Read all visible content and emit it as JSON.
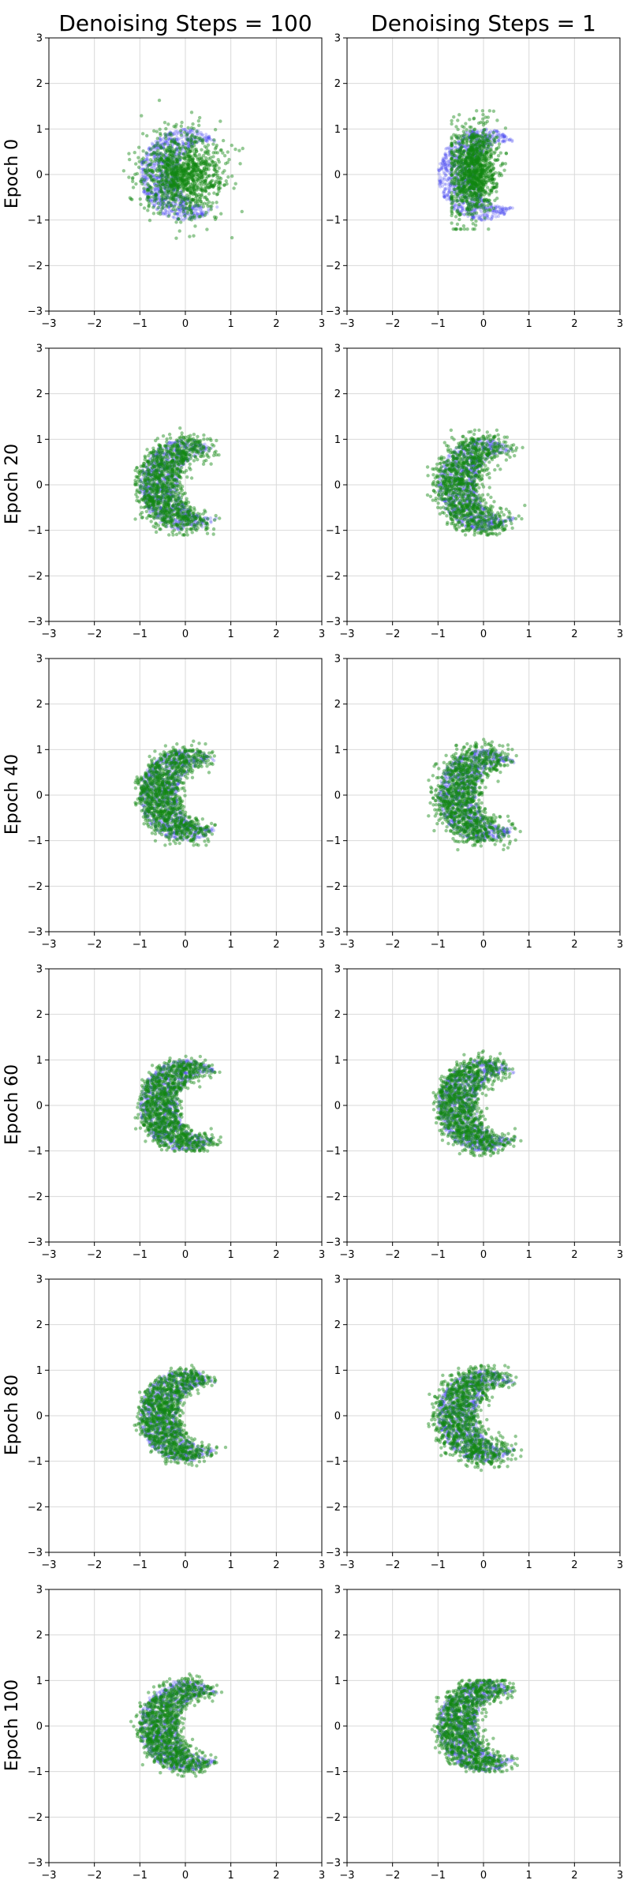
{
  "chart_data": {
    "type": "scatter",
    "layout": "grid",
    "column_titles": [
      "Denoising Steps = 100",
      "Denoising Steps = 1"
    ],
    "row_labels": [
      "Epoch 0",
      "Epoch 20",
      "Epoch 40",
      "Epoch 60",
      "Epoch 80",
      "Epoch 100"
    ],
    "xlim": [
      -3,
      3
    ],
    "ylim": [
      -3,
      3
    ],
    "ticks": [
      -3,
      -2,
      -1,
      0,
      1,
      2,
      3
    ],
    "grid": true,
    "series_colors": {
      "target": "#4a4af0",
      "generated": "#118811"
    },
    "target_distribution": {
      "shape": "crescent",
      "outer_radius": 1.0,
      "inner_center": [
        0.55,
        0.0
      ],
      "inner_radius": 0.72
    },
    "panels": [
      {
        "row": "Epoch 0",
        "column": "Denoising Steps = 100",
        "generated": {
          "shape": "gaussian",
          "center": [
            -0.05,
            0.0
          ],
          "spread": [
            0.45,
            0.45
          ],
          "x_range": [
            -1.7,
            1.4
          ],
          "y_range": [
            -1.4,
            2.0
          ]
        }
      },
      {
        "row": "Epoch 0",
        "column": "Denoising Steps = 1",
        "generated": {
          "shape": "collapsed-ellipse",
          "center": [
            -0.2,
            0.1
          ],
          "spread": [
            0.25,
            0.5
          ],
          "x_range": [
            -0.7,
            0.5
          ],
          "y_range": [
            -1.2,
            1.4
          ]
        }
      },
      {
        "row": "Epoch 20",
        "column": "Denoising Steps = 100",
        "generated": {
          "shape": "crescent",
          "noise": 0.12,
          "x_range": [
            -1.1,
            0.9
          ],
          "y_range": [
            -1.1,
            1.3
          ]
        }
      },
      {
        "row": "Epoch 20",
        "column": "Denoising Steps = 1",
        "generated": {
          "shape": "crescent",
          "noise": 0.15,
          "x_range": [
            -1.3,
            1.0
          ],
          "y_range": [
            -1.1,
            1.2
          ]
        }
      },
      {
        "row": "Epoch 40",
        "column": "Denoising Steps = 100",
        "generated": {
          "shape": "crescent",
          "noise": 0.1,
          "x_range": [
            -1.1,
            1.0
          ],
          "y_range": [
            -1.1,
            1.4
          ]
        }
      },
      {
        "row": "Epoch 40",
        "column": "Denoising Steps = 1",
        "generated": {
          "shape": "crescent",
          "noise": 0.14,
          "x_range": [
            -1.3,
            0.9
          ],
          "y_range": [
            -1.2,
            1.3
          ]
        }
      },
      {
        "row": "Epoch 60",
        "column": "Denoising Steps = 100",
        "generated": {
          "shape": "crescent",
          "noise": 0.08,
          "x_range": [
            -1.1,
            1.0
          ],
          "y_range": [
            -1.0,
            1.3
          ]
        }
      },
      {
        "row": "Epoch 60",
        "column": "Denoising Steps = 1",
        "generated": {
          "shape": "crescent",
          "noise": 0.1,
          "x_range": [
            -1.1,
            0.9
          ],
          "y_range": [
            -1.1,
            1.2
          ]
        }
      },
      {
        "row": "Epoch 80",
        "column": "Denoising Steps = 100",
        "generated": {
          "shape": "crescent",
          "noise": 0.08,
          "x_range": [
            -1.3,
            0.9
          ],
          "y_range": [
            -1.1,
            1.3
          ]
        }
      },
      {
        "row": "Epoch 80",
        "column": "Denoising Steps = 1",
        "generated": {
          "shape": "crescent",
          "noise": 0.13,
          "x_range": [
            -1.4,
            0.9
          ],
          "y_range": [
            -1.2,
            1.1
          ]
        }
      },
      {
        "row": "Epoch 100",
        "column": "Denoising Steps = 100",
        "generated": {
          "shape": "crescent",
          "noise": 0.09,
          "x_range": [
            -1.2,
            0.9
          ],
          "y_range": [
            -1.1,
            1.4
          ]
        }
      },
      {
        "row": "Epoch 100",
        "column": "Denoising Steps = 1",
        "generated": {
          "shape": "crescent",
          "noise": 0.1,
          "x_range": [
            -1.3,
            1.0
          ],
          "y_range": [
            -1.0,
            1.0
          ]
        }
      }
    ]
  }
}
